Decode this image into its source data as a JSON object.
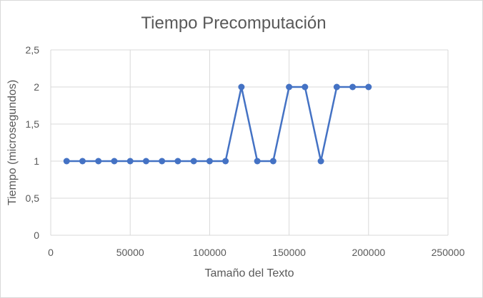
{
  "chart_data": {
    "type": "scatter",
    "title": "Tiempo Precomputación",
    "xlabel": "Tamaño del Texto",
    "ylabel": "Tiempo (microsegundos)",
    "xlim": [
      0,
      250000
    ],
    "ylim": [
      0,
      2.5
    ],
    "x_ticks": [
      "0",
      "50000",
      "100000",
      "150000",
      "200000",
      "250000"
    ],
    "y_ticks": [
      "0",
      "0,5",
      "1",
      "1,5",
      "2",
      "2,5"
    ],
    "grid": true,
    "legend": "none",
    "series": [
      {
        "color": "#4472c4",
        "x": [
          10000,
          20000,
          30000,
          40000,
          50000,
          60000,
          70000,
          80000,
          90000,
          100000,
          110000,
          120000,
          130000,
          140000,
          150000,
          160000,
          170000,
          180000,
          190000,
          200000
        ],
        "y": [
          1,
          1,
          1,
          1,
          1,
          1,
          1,
          1,
          1,
          1,
          1,
          2,
          1,
          1,
          2,
          2,
          1,
          2,
          2,
          2
        ]
      }
    ]
  }
}
